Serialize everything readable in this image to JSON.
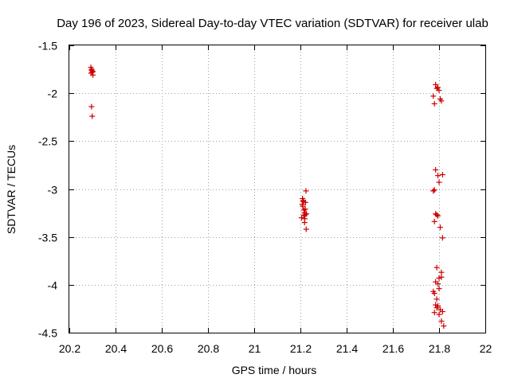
{
  "chart_data": {
    "type": "scatter",
    "title": "Day 196 of 2023, Sidereal Day-to-day VTEC variation (SDTVAR) for receiver ulab",
    "xlabel": "GPS time / hours",
    "ylabel": "SDTVAR / TECUs",
    "xlim": [
      20.2,
      22.0
    ],
    "ylim": [
      -4.5,
      -1.5
    ],
    "xticks": [
      20.2,
      20.4,
      20.6,
      20.8,
      21.0,
      21.2,
      21.4,
      21.6,
      21.8,
      22.0
    ],
    "xtick_labels": [
      "20.2",
      "20.4",
      "20.6",
      "20.8",
      "21",
      "21.2",
      "21.4",
      "21.6",
      "21.8",
      "22"
    ],
    "yticks": [
      -1.5,
      -2.0,
      -2.5,
      -3.0,
      -3.5,
      -4.0,
      -4.5
    ],
    "ytick_labels": [
      "-1.5",
      "-2",
      "-2.5",
      "-3",
      "-3.5",
      "-4",
      "-4.5"
    ],
    "grid": true,
    "marker": "+",
    "color": "#cc0000",
    "series": [
      {
        "name": "SDTVAR",
        "x": [
          20.293,
          20.296,
          20.3,
          20.297,
          20.302,
          20.294,
          20.301,
          20.296,
          20.299,
          21.205,
          21.21,
          21.215,
          21.22,
          21.222,
          21.218,
          21.225,
          21.212,
          21.208,
          21.217,
          21.221,
          21.215,
          21.209,
          21.224,
          21.226,
          21.213,
          21.219,
          21.775,
          21.79,
          21.785,
          21.8,
          21.81,
          21.795,
          21.78,
          21.805,
          21.785,
          21.795,
          21.815,
          21.8,
          21.78,
          21.775,
          21.79,
          21.785,
          21.795,
          21.78,
          21.805,
          21.815,
          21.79,
          21.81,
          21.8,
          21.785,
          21.795,
          21.775,
          21.78,
          21.79,
          21.8,
          21.81,
          21.795,
          21.785,
          21.805,
          21.815,
          21.78,
          21.79,
          21.8,
          21.81,
          21.82
        ],
        "y": [
          -1.73,
          -1.76,
          -1.78,
          -1.75,
          -1.81,
          -1.79,
          -1.77,
          -2.14,
          -2.24,
          -3.3,
          -3.18,
          -3.22,
          -3.27,
          -3.14,
          -3.35,
          -3.42,
          -3.12,
          -3.16,
          -3.25,
          -3.21,
          -3.28,
          -3.1,
          -3.02,
          -3.26,
          -3.13,
          -3.31,
          -2.03,
          -1.95,
          -1.91,
          -1.97,
          -2.08,
          -1.94,
          -2.11,
          -2.06,
          -2.8,
          -2.86,
          -2.85,
          -2.93,
          -3.01,
          -3.02,
          -3.27,
          -3.26,
          -3.28,
          -3.34,
          -3.4,
          -3.51,
          -3.82,
          -3.87,
          -3.93,
          -3.97,
          -3.99,
          -4.07,
          -4.09,
          -4.15,
          -4.04,
          -3.92,
          -4.22,
          -4.21,
          -4.26,
          -4.28,
          -4.29,
          -4.24,
          -4.31,
          -4.38,
          -4.43
        ]
      }
    ]
  }
}
